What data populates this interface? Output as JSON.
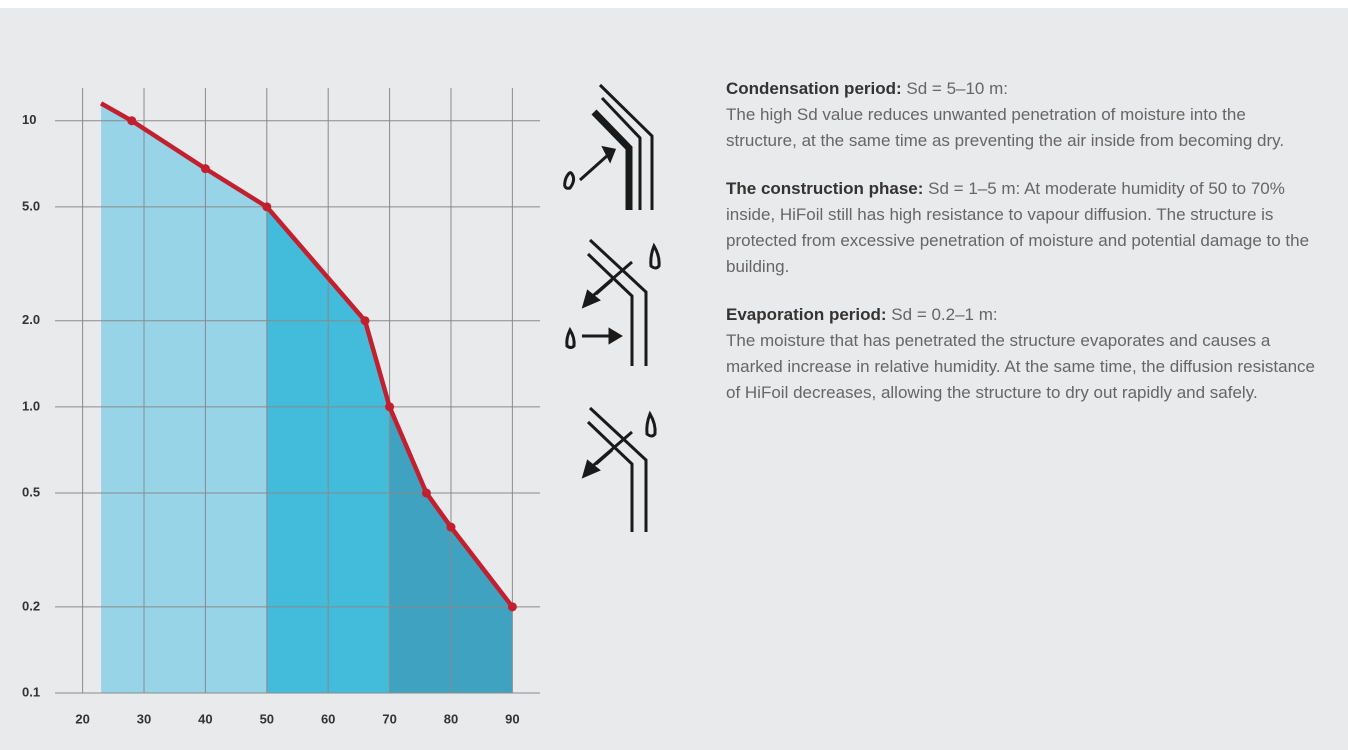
{
  "chart_data": {
    "type": "line",
    "x": [
      23,
      28,
      40,
      50,
      66,
      70,
      76,
      80,
      90
    ],
    "values": [
      11.5,
      10,
      6.8,
      5,
      2,
      1,
      0.5,
      0.38,
      0.2
    ],
    "color": "#c3202f",
    "markers": [
      false,
      true,
      true,
      true,
      true,
      true,
      true,
      true,
      true
    ],
    "log_y": true,
    "xlim": [
      15.5,
      94.5
    ],
    "xticks": [
      20,
      30,
      40,
      50,
      60,
      70,
      80,
      90
    ],
    "ylim": [
      0.1,
      12.5
    ],
    "yticks": [
      0.1,
      0.2,
      0.5,
      {
        "value": 1,
        "label": "1.0"
      },
      {
        "value": 2,
        "label": "2.0"
      },
      {
        "value": 5,
        "label": "5.0"
      },
      10
    ],
    "grid": true,
    "region_breaks": [
      50,
      70
    ],
    "region_colors": [
      "#97d4e8",
      "#43bbdb",
      "#3fa2c1"
    ]
  },
  "notes": [
    {
      "heading": "Condensation period:",
      "lead": " Sd = 5–10 m:",
      "body": "The high Sd value reduces unwanted penetration of moisture into the structure, at the same time as preventing the air inside from becoming dry."
    },
    {
      "heading": "The construction phase:",
      "lead": " Sd = 1–5 m: At moderate humidity of 50 to 70% inside, HiFoil still has high resistance to vapour diffusion. The structure is protected from excessive penetration of moisture and potential damage to the building."
    },
    {
      "heading": "Evaporation period:",
      "lead": " Sd = 0.2–1 m:",
      "body": "The moisture that has penetrated the structure evaporates and causes a marked increase in relative humidity. At the same time, the diffusion resistance of HiFoil decreases, allowing the structure to dry out rapidly and safely."
    }
  ]
}
